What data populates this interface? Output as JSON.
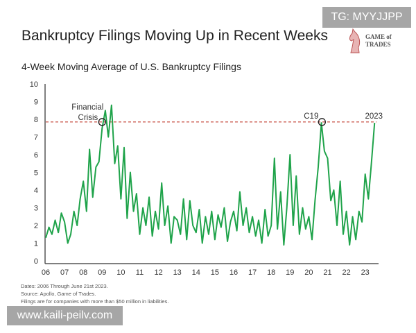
{
  "watermark_top": "TG: MYYJJPP",
  "watermark_bottom": "www.kaili-peilv.com",
  "logo": {
    "line1": "GAME of",
    "line2": "TRADES"
  },
  "chart_data": {
    "type": "line",
    "title": "Bankruptcy Filings Moving Up in Recent Weeks",
    "subtitle": "4-Week Moving Average of U.S. Bankruptcy Filings",
    "xlabel": "",
    "ylabel": "",
    "xlim": [
      2006,
      2023.6
    ],
    "ylim": [
      0,
      10
    ],
    "grid": false,
    "line_color": "#1fa34a",
    "reference_line": {
      "value": 7.85,
      "color": "#c0392b",
      "style": "dashed"
    },
    "x_tick_labels": [
      "06",
      "07",
      "08",
      "09",
      "10",
      "11",
      "12",
      "13",
      "14",
      "15",
      "16",
      "17",
      "18",
      "19",
      "20",
      "21",
      "22",
      "23"
    ],
    "y_tick_labels": [
      "0",
      "1",
      "2",
      "3",
      "4",
      "5",
      "6",
      "7",
      "8",
      "9",
      "10"
    ],
    "annotations": [
      {
        "label": "Financial\nCrisis",
        "label_lines": [
          "Financial",
          "Crisis"
        ],
        "x": 2009.0,
        "y": 7.85
      },
      {
        "label": "C19",
        "x": 2020.7,
        "y": 7.85
      },
      {
        "label": "2023",
        "x": 2023.5,
        "y": 7.85
      }
    ],
    "series": [
      {
        "x": [
          2006,
          2006.17,
          2006.33,
          2006.5,
          2006.67,
          2006.83,
          2007,
          2007.17,
          2007.33,
          2007.5,
          2007.67,
          2007.83,
          2008,
          2008.17,
          2008.33,
          2008.5,
          2008.67,
          2008.83,
          2009,
          2009.17,
          2009.33,
          2009.5,
          2009.67,
          2009.83,
          2010,
          2010.17,
          2010.33,
          2010.5,
          2010.67,
          2010.83,
          2011,
          2011.17,
          2011.33,
          2011.5,
          2011.67,
          2011.83,
          2012,
          2012.17,
          2012.33,
          2012.5,
          2012.67,
          2012.83,
          2013,
          2013.17,
          2013.33,
          2013.5,
          2013.67,
          2013.83,
          2014,
          2014.17,
          2014.33,
          2014.5,
          2014.67,
          2014.83,
          2015,
          2015.17,
          2015.33,
          2015.5,
          2015.67,
          2015.83,
          2016,
          2016.17,
          2016.33,
          2016.5,
          2016.67,
          2016.83,
          2017,
          2017.17,
          2017.33,
          2017.5,
          2017.67,
          2017.83,
          2018,
          2018.17,
          2018.33,
          2018.5,
          2018.67,
          2018.83,
          2019,
          2019.17,
          2019.33,
          2019.5,
          2019.67,
          2019.83,
          2020,
          2020.17,
          2020.33,
          2020.5,
          2020.67,
          2020.83,
          2021,
          2021.17,
          2021.33,
          2021.5,
          2021.67,
          2021.83,
          2022,
          2022.17,
          2022.33,
          2022.5,
          2022.67,
          2022.83,
          2023,
          2023.17,
          2023.33,
          2023.5
        ],
        "values": [
          1.3,
          1.9,
          1.5,
          2.3,
          1.6,
          2.7,
          2.2,
          1.0,
          1.5,
          2.8,
          2.0,
          3.5,
          4.5,
          2.8,
          6.3,
          3.6,
          5.3,
          5.6,
          7.5,
          8.5,
          7.0,
          8.8,
          5.5,
          6.5,
          3.5,
          6.4,
          2.4,
          5.0,
          2.8,
          3.8,
          1.5,
          3.0,
          2.0,
          3.6,
          1.4,
          2.8,
          1.8,
          4.4,
          2.0,
          3.1,
          1.0,
          2.5,
          2.3,
          1.5,
          3.5,
          1.2,
          3.4,
          2.0,
          1.6,
          2.9,
          1.0,
          2.5,
          1.5,
          2.8,
          1.2,
          2.6,
          1.9,
          3.0,
          1.1,
          2.2,
          2.8,
          1.7,
          3.9,
          2.0,
          3.0,
          1.6,
          2.5,
          1.4,
          2.3,
          1.0,
          2.9,
          1.4,
          2.0,
          5.8,
          1.8,
          3.9,
          0.9,
          3.0,
          6.0,
          2.0,
          4.8,
          1.5,
          3.0,
          1.8,
          2.5,
          1.2,
          3.4,
          5.3,
          7.8,
          6.2,
          5.8,
          3.4,
          4.0,
          2.0,
          4.5,
          1.5,
          2.8,
          0.9,
          2.5,
          1.2,
          2.8,
          2.2,
          4.9,
          3.5,
          5.5,
          7.8
        ]
      }
    ],
    "notes": [
      "Dates: 2006 Through June 21st 2023.",
      "Source: Apollo, Game of Trades.",
      "Filings are for companies with more than $50 million in liabilities."
    ]
  }
}
